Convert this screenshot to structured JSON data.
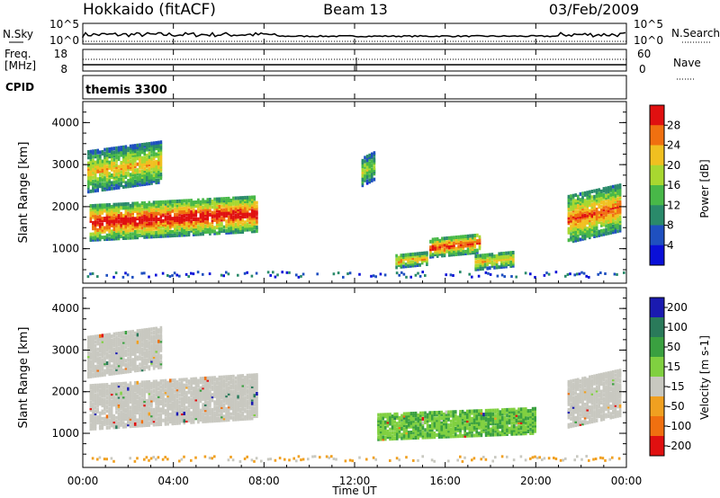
{
  "header": {
    "station": "Hokkaido (fitACF)",
    "beam": "Beam 13",
    "date": "03/Feb/2009"
  },
  "top_panels": {
    "nsky_label": "N.Sky",
    "nsearch_label": "N.Search",
    "noise_ticks": [
      "10^5",
      "10^0"
    ],
    "freq_label": "Freq.",
    "freq_unit": "[MHz]",
    "freq_ticks": [
      "18",
      "8"
    ],
    "nave_label": "Nave",
    "nave_ticks": [
      "60",
      "0"
    ],
    "cpid_label": "CPID",
    "cpid_value": "themis 3300"
  },
  "chart_data": [
    {
      "type": "heatmap",
      "title": "Power",
      "ylabel": "Slant Range [km]",
      "xlabel": "Time UT",
      "ylim": [
        180,
        4500
      ],
      "y_ticks": [
        1000,
        2000,
        3000,
        4000
      ],
      "colorbar_label": "Power [dB]",
      "colorbar_ticks": [
        4,
        8,
        12,
        16,
        20,
        24,
        28
      ],
      "colorbar_range": [
        0,
        32
      ],
      "colors": [
        "#0a10d8",
        "#1f50c0",
        "#2a8a6a",
        "#48b848",
        "#a8d830",
        "#f0c020",
        "#f07010",
        "#e01010"
      ],
      "features": [
        {
          "t": [
            0.3,
            7.7
          ],
          "r": [
            1250,
            2100
          ],
          "level": 26
        },
        {
          "t": [
            0.2,
            3.5
          ],
          "r": [
            2400,
            3350
          ],
          "level": 18
        },
        {
          "t": [
            12.3,
            12.9
          ],
          "r": [
            2550,
            3200
          ],
          "level": 14
        },
        {
          "t": [
            15.3,
            17.5
          ],
          "r": [
            850,
            1300
          ],
          "level": 24
        },
        {
          "t": [
            13.8,
            15.2
          ],
          "r": [
            600,
            900
          ],
          "level": 20
        },
        {
          "t": [
            17.3,
            19.0
          ],
          "r": [
            550,
            900
          ],
          "level": 18
        },
        {
          "t": [
            21.4,
            23.7
          ],
          "r": [
            1200,
            2300
          ],
          "level": 22
        }
      ]
    },
    {
      "type": "heatmap",
      "title": "Velocity",
      "ylabel": "Slant Range [km]",
      "xlabel": "Time UT",
      "ylim": [
        180,
        4500
      ],
      "y_ticks": [
        1000,
        2000,
        3000,
        4000
      ],
      "colorbar_label": "Velocity [m s-1]",
      "colorbar_ticks": [
        200,
        100,
        50,
        15,
        -15,
        -50,
        -100,
        -200
      ],
      "colors": [
        "#1a1ab0",
        "#2a7a5a",
        "#3aa040",
        "#80d040",
        "#c8c8c0",
        "#f0a020",
        "#f07010",
        "#e01010"
      ],
      "features": [
        {
          "t": [
            0.3,
            7.7
          ],
          "r": [
            1150,
            2200
          ],
          "velocity": 0
        },
        {
          "t": [
            0.2,
            3.5
          ],
          "r": [
            2400,
            3350
          ],
          "velocity": 0
        },
        {
          "t": [
            13.0,
            20.0
          ],
          "r": [
            900,
            1500
          ],
          "velocity": 60
        },
        {
          "t": [
            21.4,
            23.7
          ],
          "r": [
            1200,
            2300
          ],
          "velocity": 0
        }
      ]
    }
  ],
  "x_axis": {
    "ticks": [
      "00:00",
      "04:00",
      "08:00",
      "12:00",
      "16:00",
      "20:00",
      "00:00"
    ],
    "label": "Time UT",
    "range_hours": [
      0,
      24
    ]
  }
}
